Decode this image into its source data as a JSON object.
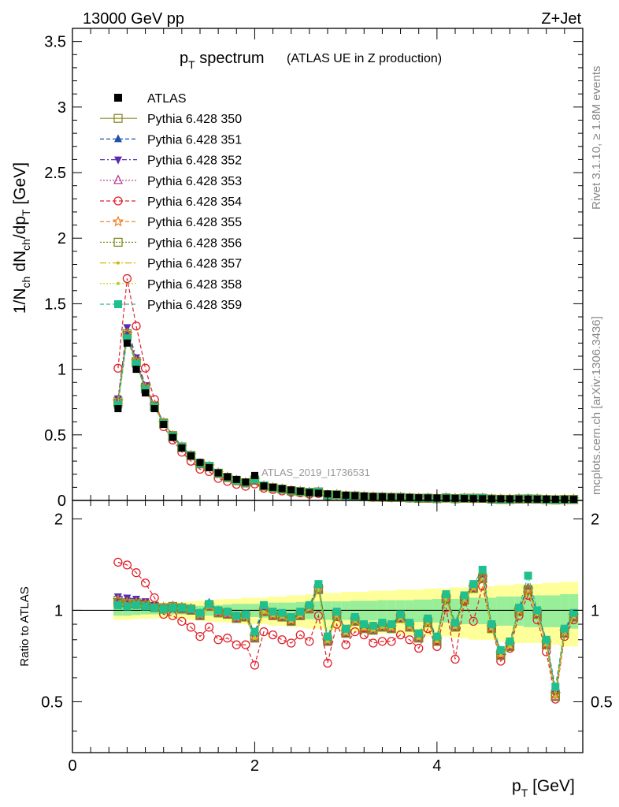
{
  "header": {
    "energy": "13000 GeV pp",
    "process": "Z+Jet"
  },
  "side": {
    "rivet": "Rivet 3.1.10, ≥ 1.8M events",
    "mcplots": "mcplots.cern.ch [arXiv:1306.3436]"
  },
  "watermark": "ATLAS_2019_I1736531",
  "chart_data": {
    "type": "scatter",
    "title": "p_T spectrum",
    "subtitle": "(ATLAS UE in Z production)",
    "xlabel": "p_T [GeV]",
    "ylabel": "1/N_ch dN_ch/dp_T [GeV]",
    "ratio_ylabel": "Ratio to ATLAS",
    "xlim": [
      0,
      5.6
    ],
    "ylim": [
      0,
      3.6
    ],
    "ratio_ylim": [
      0.34,
      2.3
    ],
    "x_ticks": [
      "0",
      "2",
      "4"
    ],
    "y_ticks": [
      "0",
      "0.5",
      "1",
      "1.5",
      "2",
      "2.5",
      "3",
      "3.5"
    ],
    "ratio_ticks": [
      "0.5",
      "1",
      "2"
    ],
    "x": [
      0.5,
      0.6,
      0.7,
      0.8,
      0.9,
      1.0,
      1.1,
      1.2,
      1.3,
      1.4,
      1.5,
      1.6,
      1.7,
      1.8,
      1.9,
      2.0,
      2.1,
      2.2,
      2.3,
      2.4,
      2.5,
      2.6,
      2.7,
      2.8,
      2.9,
      3.0,
      3.1,
      3.2,
      3.3,
      3.4,
      3.5,
      3.6,
      3.7,
      3.8,
      3.9,
      4.0,
      4.1,
      4.2,
      4.3,
      4.4,
      4.5,
      4.6,
      4.7,
      4.8,
      4.9,
      5.0,
      5.1,
      5.2,
      5.3,
      5.4,
      5.5
    ],
    "data": [
      0.7,
      1.2,
      1.0,
      0.82,
      0.7,
      0.58,
      0.48,
      0.4,
      0.34,
      0.29,
      0.25,
      0.21,
      0.18,
      0.16,
      0.14,
      0.19,
      0.11,
      0.1,
      0.09,
      0.08,
      0.07,
      0.06,
      0.055,
      0.05,
      0.045,
      0.04,
      0.036,
      0.033,
      0.03,
      0.028,
      0.026,
      0.024,
      0.022,
      0.02,
      0.019,
      0.018,
      0.017,
      0.016,
      0.015,
      0.014,
      0.013,
      0.012,
      0.012,
      0.011,
      0.011,
      0.01,
      0.01,
      0.009,
      0.009,
      0.008,
      0.008
    ],
    "band_inner": [
      0.04,
      0.04,
      0.035,
      0.03,
      0.03,
      0.03,
      0.03,
      0.03,
      0.03,
      0.035,
      0.04,
      0.04,
      0.045,
      0.05,
      0.05,
      0.05,
      0.055,
      0.06,
      0.06,
      0.06,
      0.065,
      0.065,
      0.07,
      0.07,
      0.07,
      0.07,
      0.075,
      0.075,
      0.075,
      0.08,
      0.08,
      0.08,
      0.08,
      0.085,
      0.085,
      0.09,
      0.09,
      0.09,
      0.1,
      0.1,
      0.1,
      0.1,
      0.11,
      0.11,
      0.11,
      0.12,
      0.12,
      0.12,
      0.12,
      0.13,
      0.13
    ],
    "band_outer": [
      0.07,
      0.07,
      0.065,
      0.06,
      0.06,
      0.06,
      0.06,
      0.065,
      0.07,
      0.075,
      0.08,
      0.085,
      0.09,
      0.09,
      0.1,
      0.1,
      0.1,
      0.11,
      0.11,
      0.12,
      0.12,
      0.13,
      0.13,
      0.14,
      0.14,
      0.15,
      0.15,
      0.15,
      0.16,
      0.16,
      0.16,
      0.17,
      0.17,
      0.17,
      0.18,
      0.18,
      0.18,
      0.19,
      0.19,
      0.2,
      0.2,
      0.2,
      0.21,
      0.21,
      0.22,
      0.22,
      0.22,
      0.23,
      0.23,
      0.24,
      0.24
    ],
    "series": [
      {
        "name": "Pythia 6.428 350",
        "color": "#8b8b2c",
        "marker": "square-open",
        "dash": "",
        "ratio": [
          1.08,
          1.06,
          1.06,
          1.05,
          1.03,
          1.02,
          1.03,
          1.02,
          1.01,
          0.97,
          1.04,
          0.99,
          0.98,
          0.95,
          0.96,
          0.82,
          1.0,
          0.97,
          0.96,
          0.93,
          0.97,
          1.02,
          1.18,
          0.8,
          0.97,
          0.85,
          0.93,
          0.88,
          0.87,
          0.89,
          0.88,
          0.95,
          0.89,
          0.82,
          0.92,
          0.8,
          1.1,
          0.89,
          1.09,
          1.19,
          1.28,
          0.88,
          0.72,
          0.77,
          1.0,
          1.17,
          0.98,
          0.78,
          0.53,
          0.85,
          0.96
        ]
      },
      {
        "name": "Pythia 6.428 351",
        "color": "#1f4fa8",
        "marker": "triangle-up",
        "dash": "5,3",
        "ratio": [
          1.09,
          1.07,
          1.07,
          1.06,
          1.04,
          1.03,
          1.04,
          1.03,
          1.02,
          0.98,
          1.06,
          1.0,
          0.99,
          0.96,
          0.97,
          0.84,
          1.03,
          0.98,
          0.97,
          0.94,
          0.98,
          1.03,
          1.21,
          0.81,
          0.98,
          0.86,
          0.94,
          0.89,
          0.88,
          0.9,
          0.89,
          0.96,
          0.9,
          0.83,
          0.93,
          0.81,
          1.12,
          0.9,
          1.1,
          1.21,
          1.3,
          0.89,
          0.73,
          0.78,
          1.01,
          1.19,
          0.99,
          0.79,
          0.54,
          0.86,
          0.97
        ]
      },
      {
        "name": "Pythia 6.428 352",
        "color": "#5a2db0",
        "marker": "triangle-down",
        "dash": "6,3,2,3",
        "ratio": [
          1.11,
          1.1,
          1.09,
          1.07,
          1.04,
          1.02,
          1.03,
          1.02,
          1.01,
          0.97,
          1.05,
          0.99,
          0.98,
          0.95,
          0.96,
          0.82,
          1.01,
          0.97,
          0.96,
          0.93,
          0.97,
          1.02,
          1.19,
          0.8,
          0.97,
          0.85,
          0.93,
          0.88,
          0.87,
          0.89,
          0.88,
          0.95,
          0.89,
          0.82,
          0.92,
          0.8,
          1.1,
          0.89,
          1.09,
          1.19,
          1.28,
          0.88,
          0.72,
          0.77,
          1.0,
          1.17,
          0.98,
          0.78,
          0.53,
          0.85,
          0.96
        ]
      },
      {
        "name": "Pythia 6.428 353",
        "color": "#b0308a",
        "marker": "triangle-up-open",
        "dash": "2,2",
        "ratio": [
          1.07,
          1.06,
          1.05,
          1.04,
          1.02,
          1.01,
          1.02,
          1.01,
          1.0,
          0.96,
          1.03,
          0.98,
          0.97,
          0.94,
          0.95,
          0.81,
          0.99,
          0.96,
          0.95,
          0.92,
          0.96,
          1.01,
          1.17,
          0.79,
          0.96,
          0.84,
          0.92,
          0.87,
          0.86,
          0.88,
          0.87,
          0.94,
          0.88,
          0.81,
          0.91,
          0.79,
          1.09,
          0.88,
          1.08,
          1.18,
          1.27,
          0.87,
          0.71,
          0.76,
          0.99,
          1.16,
          0.97,
          0.77,
          0.52,
          0.84,
          0.95
        ]
      },
      {
        "name": "Pythia 6.428 354",
        "color": "#e0202a",
        "marker": "circle-open",
        "dash": "5,3",
        "ratio": [
          1.44,
          1.41,
          1.33,
          1.23,
          1.1,
          0.97,
          0.96,
          0.92,
          0.88,
          0.82,
          0.88,
          0.8,
          0.81,
          0.77,
          0.77,
          0.66,
          0.85,
          0.83,
          0.8,
          0.78,
          0.83,
          0.79,
          0.96,
          0.67,
          0.9,
          0.77,
          0.85,
          0.83,
          0.78,
          0.79,
          0.79,
          0.83,
          0.8,
          0.75,
          0.87,
          0.76,
          1.02,
          0.69,
          1.07,
          0.92,
          1.2,
          0.88,
          0.68,
          0.75,
          0.96,
          1.12,
          0.93,
          0.73,
          0.51,
          0.82,
          0.93
        ]
      },
      {
        "name": "Pythia 6.428 355",
        "color": "#f07a1a",
        "marker": "star-open",
        "dash": "5,3",
        "ratio": [
          1.08,
          1.06,
          1.06,
          1.05,
          1.03,
          1.02,
          1.03,
          1.02,
          1.01,
          0.97,
          1.04,
          0.99,
          0.98,
          0.95,
          0.96,
          0.82,
          1.0,
          0.97,
          0.96,
          0.93,
          0.97,
          1.02,
          1.18,
          0.8,
          0.97,
          0.85,
          0.93,
          0.88,
          0.87,
          0.89,
          0.88,
          0.95,
          0.89,
          0.82,
          0.92,
          0.8,
          1.1,
          0.89,
          1.09,
          1.19,
          1.28,
          0.88,
          0.72,
          0.77,
          1.0,
          1.17,
          0.98,
          0.78,
          0.53,
          0.85,
          0.96
        ]
      },
      {
        "name": "Pythia 6.428 356",
        "color": "#7a8a1a",
        "marker": "square-open",
        "dash": "2,2",
        "ratio": [
          1.06,
          1.05,
          1.05,
          1.04,
          1.02,
          1.01,
          1.02,
          1.01,
          1.0,
          0.96,
          1.03,
          0.98,
          0.97,
          0.94,
          0.95,
          0.81,
          0.99,
          0.96,
          0.95,
          0.92,
          0.96,
          1.01,
          1.17,
          0.79,
          0.96,
          0.84,
          0.92,
          0.87,
          0.86,
          0.88,
          0.87,
          0.94,
          0.88,
          0.81,
          0.91,
          0.79,
          1.09,
          0.88,
          1.08,
          1.18,
          1.27,
          0.87,
          0.71,
          0.76,
          0.99,
          1.16,
          0.97,
          0.77,
          0.52,
          0.84,
          0.95
        ]
      },
      {
        "name": "Pythia 6.428 357",
        "color": "#d4b400",
        "marker": "dot",
        "dash": "8,3,2,3",
        "ratio": [
          1.05,
          1.04,
          1.04,
          1.03,
          1.02,
          1.01,
          1.02,
          1.01,
          1.0,
          0.96,
          1.03,
          0.98,
          0.97,
          0.94,
          0.95,
          0.81,
          0.99,
          0.96,
          0.95,
          0.92,
          0.96,
          1.01,
          1.17,
          0.79,
          0.96,
          0.84,
          0.92,
          0.87,
          0.86,
          0.88,
          0.87,
          0.94,
          0.88,
          0.81,
          0.91,
          0.79,
          1.09,
          0.88,
          1.08,
          1.18,
          1.27,
          0.87,
          0.71,
          0.76,
          0.99,
          1.16,
          0.97,
          0.77,
          0.52,
          0.84,
          0.95
        ]
      },
      {
        "name": "Pythia 6.428 358",
        "color": "#b6d21a",
        "marker": "dot",
        "dash": "2,2",
        "ratio": [
          1.05,
          1.04,
          1.04,
          1.03,
          1.02,
          1.01,
          1.02,
          1.01,
          1.0,
          0.96,
          1.03,
          0.98,
          0.97,
          0.94,
          0.95,
          0.81,
          0.99,
          0.96,
          0.95,
          0.92,
          0.96,
          1.01,
          1.17,
          0.79,
          0.96,
          0.84,
          0.92,
          0.87,
          0.86,
          0.88,
          0.87,
          0.94,
          0.88,
          0.81,
          0.91,
          0.79,
          1.09,
          0.88,
          1.08,
          1.18,
          1.27,
          0.87,
          0.71,
          0.76,
          0.99,
          1.16,
          0.97,
          0.77,
          0.52,
          0.84,
          0.95
        ]
      },
      {
        "name": "Pythia 6.428 359",
        "color": "#1fbf8f",
        "marker": "square",
        "dash": "5,3",
        "ratio": [
          1.04,
          1.03,
          1.04,
          1.03,
          1.02,
          1.01,
          1.02,
          1.02,
          1.01,
          0.98,
          1.05,
          1.0,
          0.99,
          0.96,
          0.97,
          0.85,
          1.04,
          0.99,
          0.98,
          0.95,
          0.99,
          1.04,
          1.22,
          0.82,
          0.99,
          0.87,
          0.95,
          0.9,
          0.89,
          0.91,
          0.9,
          0.97,
          0.91,
          0.84,
          0.94,
          0.82,
          1.13,
          0.91,
          1.12,
          1.22,
          1.36,
          0.9,
          0.74,
          0.79,
          1.02,
          1.3,
          1.0,
          0.8,
          0.56,
          0.87,
          0.98
        ]
      }
    ]
  }
}
